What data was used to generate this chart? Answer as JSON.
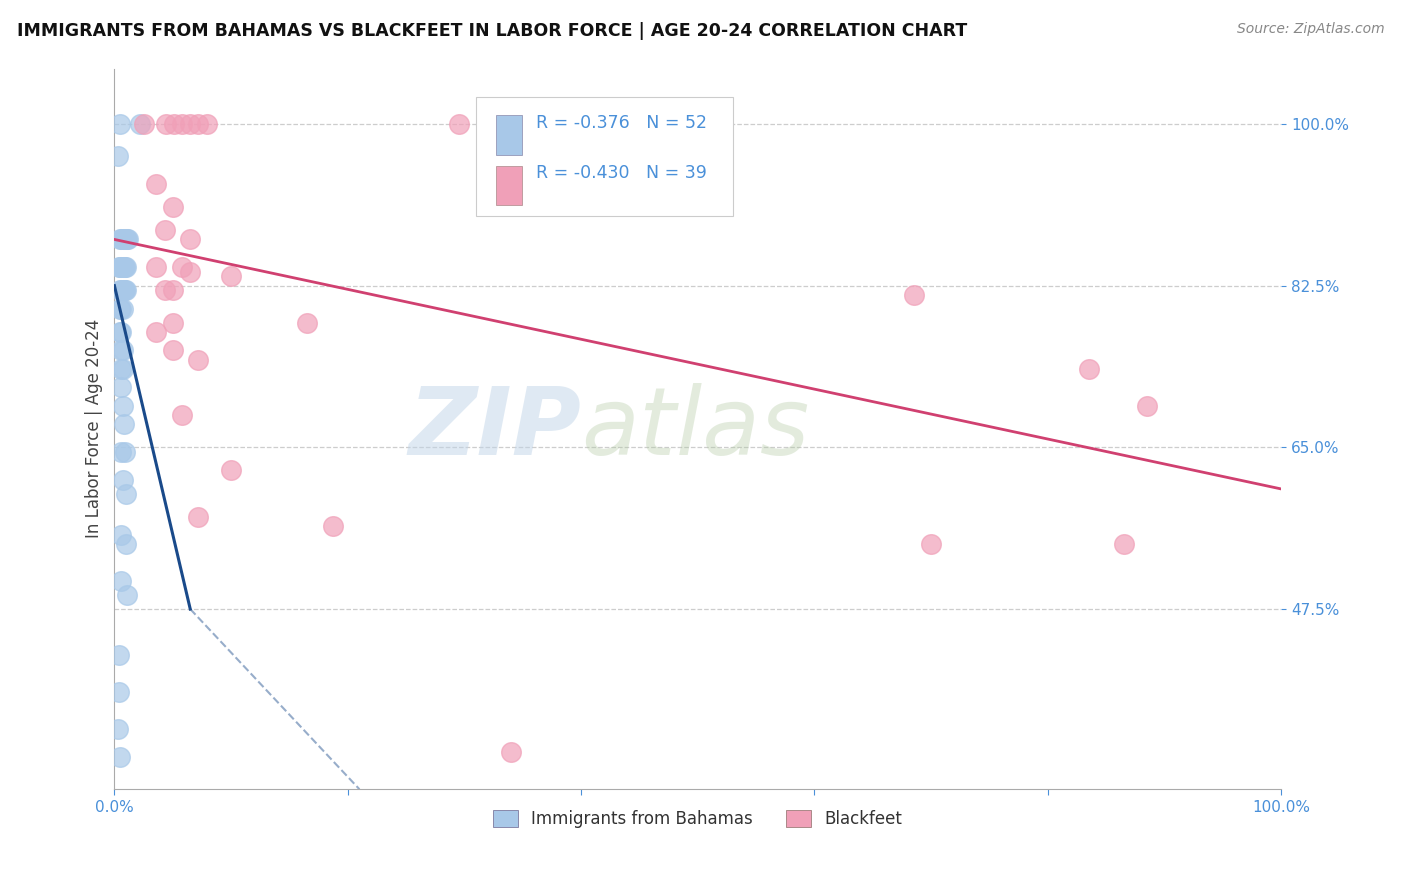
{
  "title": "IMMIGRANTS FROM BAHAMAS VS BLACKFEET IN LABOR FORCE | AGE 20-24 CORRELATION CHART",
  "source": "Source: ZipAtlas.com",
  "ylabel": "In Labor Force | Age 20-24",
  "xlim": [
    0.0,
    1.0
  ],
  "ylim": [
    0.28,
    1.06
  ],
  "x_ticks": [
    0.0,
    0.2,
    0.4,
    0.6,
    0.8,
    1.0
  ],
  "x_tick_labels": [
    "0.0%",
    "",
    "",
    "",
    "",
    "100.0%"
  ],
  "y_tick_labels": [
    "100.0%",
    "82.5%",
    "65.0%",
    "47.5%"
  ],
  "y_tick_vals": [
    1.0,
    0.825,
    0.65,
    0.475
  ],
  "grid_color": "#c8c8c8",
  "background_color": "#ffffff",
  "watermark_zip": "ZIP",
  "watermark_atlas": "atlas",
  "legend_r_blue": "-0.376",
  "legend_n_blue": "52",
  "legend_r_pink": "-0.430",
  "legend_n_pink": "39",
  "legend_label_blue": "Immigrants from Bahamas",
  "legend_label_pink": "Blackfeet",
  "blue_color": "#a8c8e8",
  "pink_color": "#f0a0b8",
  "blue_line_color": "#1a4a8a",
  "pink_line_color": "#d04070",
  "scatter_blue": [
    [
      0.005,
      1.0
    ],
    [
      0.022,
      1.0
    ],
    [
      0.003,
      0.965
    ],
    [
      0.005,
      0.875
    ],
    [
      0.006,
      0.875
    ],
    [
      0.007,
      0.875
    ],
    [
      0.008,
      0.875
    ],
    [
      0.009,
      0.875
    ],
    [
      0.01,
      0.875
    ],
    [
      0.011,
      0.875
    ],
    [
      0.012,
      0.875
    ],
    [
      0.004,
      0.845
    ],
    [
      0.005,
      0.845
    ],
    [
      0.006,
      0.845
    ],
    [
      0.007,
      0.845
    ],
    [
      0.008,
      0.845
    ],
    [
      0.009,
      0.845
    ],
    [
      0.01,
      0.845
    ],
    [
      0.005,
      0.82
    ],
    [
      0.006,
      0.82
    ],
    [
      0.007,
      0.82
    ],
    [
      0.008,
      0.82
    ],
    [
      0.009,
      0.82
    ],
    [
      0.01,
      0.82
    ],
    [
      0.005,
      0.8
    ],
    [
      0.006,
      0.8
    ],
    [
      0.007,
      0.8
    ],
    [
      0.005,
      0.775
    ],
    [
      0.006,
      0.775
    ],
    [
      0.006,
      0.755
    ],
    [
      0.007,
      0.755
    ],
    [
      0.006,
      0.735
    ],
    [
      0.007,
      0.735
    ],
    [
      0.006,
      0.715
    ],
    [
      0.007,
      0.695
    ],
    [
      0.008,
      0.675
    ],
    [
      0.006,
      0.645
    ],
    [
      0.009,
      0.645
    ],
    [
      0.007,
      0.615
    ],
    [
      0.01,
      0.6
    ],
    [
      0.006,
      0.555
    ],
    [
      0.01,
      0.545
    ],
    [
      0.006,
      0.505
    ],
    [
      0.011,
      0.49
    ],
    [
      0.004,
      0.425
    ],
    [
      0.004,
      0.385
    ],
    [
      0.003,
      0.345
    ],
    [
      0.005,
      0.315
    ]
  ],
  "scatter_pink": [
    [
      0.025,
      1.0
    ],
    [
      0.044,
      1.0
    ],
    [
      0.051,
      1.0
    ],
    [
      0.058,
      1.0
    ],
    [
      0.065,
      1.0
    ],
    [
      0.072,
      1.0
    ],
    [
      0.079,
      1.0
    ],
    [
      0.295,
      1.0
    ],
    [
      0.036,
      0.935
    ],
    [
      0.05,
      0.91
    ],
    [
      0.043,
      0.885
    ],
    [
      0.065,
      0.875
    ],
    [
      0.036,
      0.845
    ],
    [
      0.058,
      0.845
    ],
    [
      0.065,
      0.84
    ],
    [
      0.1,
      0.835
    ],
    [
      0.043,
      0.82
    ],
    [
      0.05,
      0.82
    ],
    [
      0.05,
      0.785
    ],
    [
      0.165,
      0.785
    ],
    [
      0.036,
      0.775
    ],
    [
      0.05,
      0.755
    ],
    [
      0.072,
      0.745
    ],
    [
      0.058,
      0.685
    ],
    [
      0.1,
      0.625
    ],
    [
      0.072,
      0.575
    ],
    [
      0.187,
      0.565
    ],
    [
      0.685,
      0.815
    ],
    [
      0.835,
      0.735
    ],
    [
      0.885,
      0.695
    ],
    [
      0.7,
      0.545
    ],
    [
      0.865,
      0.545
    ],
    [
      0.34,
      0.32
    ]
  ],
  "blue_trendline_solid": [
    [
      0.0,
      0.825
    ],
    [
      0.065,
      0.475
    ]
  ],
  "blue_trendline_dashed": [
    [
      0.065,
      0.475
    ],
    [
      0.21,
      0.28
    ]
  ],
  "pink_trendline": [
    [
      0.0,
      0.875
    ],
    [
      1.0,
      0.605
    ]
  ]
}
